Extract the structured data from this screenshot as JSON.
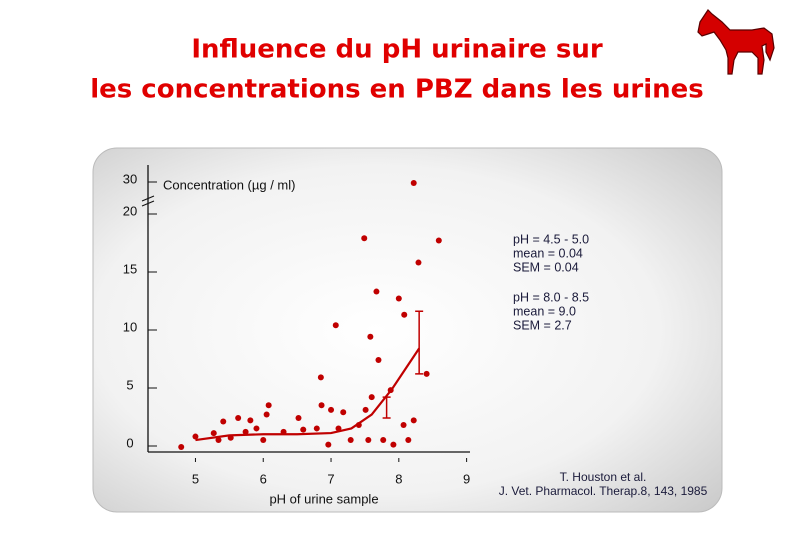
{
  "title_lines": [
    "Influence du pH urinaire sur",
    "les concentrations en PBZ dans les urines"
  ],
  "chart_data": {
    "type": "scatter",
    "y_label": "Concentration (µg / ml)",
    "x_label": "pH of urine sample",
    "xlim": [
      4.3,
      9.05
    ],
    "ylim": [
      0,
      30
    ],
    "axis_break": true,
    "xticks": [
      5,
      6,
      7,
      8,
      9
    ],
    "yticks": [
      0,
      5,
      10,
      15,
      20,
      30
    ],
    "points": {
      "color": "#c00000",
      "x": [
        8.22,
        7.49,
        8.59,
        8.29,
        7.67,
        8.0,
        8.08,
        7.07,
        7.58,
        7.7,
        6.85,
        8.41,
        7.88,
        7.6,
        7.51,
        6.08,
        5.63,
        5.81,
        6.05,
        6.52,
        6.86,
        7.0,
        7.18,
        8.22,
        8.07,
        4.79,
        5.0,
        5.27,
        5.41,
        5.52,
        5.74,
        5.9,
        6.3,
        6.59,
        6.79,
        7.11,
        7.29,
        7.41,
        7.55,
        7.77,
        7.92,
        8.14,
        5.34,
        6.96,
        6.0
      ],
      "y": [
        30,
        18.0,
        17.8,
        15.9,
        13.4,
        12.8,
        11.4,
        10.5,
        9.5,
        7.5,
        6.0,
        6.3,
        4.9,
        4.3,
        3.2,
        3.6,
        2.5,
        2.3,
        2.8,
        2.5,
        3.6,
        3.2,
        3.0,
        2.3,
        1.9,
        0,
        0.9,
        1.2,
        2.2,
        0.8,
        1.3,
        1.6,
        1.3,
        1.5,
        1.6,
        1.6,
        0.6,
        1.9,
        0.6,
        0.6,
        0.2,
        0.6,
        0.6,
        0.2,
        0.6
      ]
    },
    "fit": {
      "color": "#c00000",
      "x": [
        5.0,
        5.5,
        6.0,
        6.5,
        7.0,
        7.3,
        7.6,
        7.9,
        8.3
      ],
      "y": [
        0.6,
        1.0,
        1.1,
        1.1,
        1.2,
        1.6,
        2.8,
        5.0,
        8.5
      ]
    },
    "error_bars": [
      {
        "x": 7.82,
        "y": 3.4,
        "err": 0.9
      },
      {
        "x": 8.3,
        "y": 9.0,
        "err": 2.7
      }
    ],
    "annotations": [
      "pH = 4.5 - 5.0",
      "mean = 0.04",
      "SEM = 0.04",
      "pH = 8.0 -  8.5",
      "mean = 9.0",
      "SEM = 2.7"
    ],
    "citation": [
      "T. Houston et al.",
      "J. Vet. Pharmacol. Therap.8, 143, 1985"
    ]
  }
}
